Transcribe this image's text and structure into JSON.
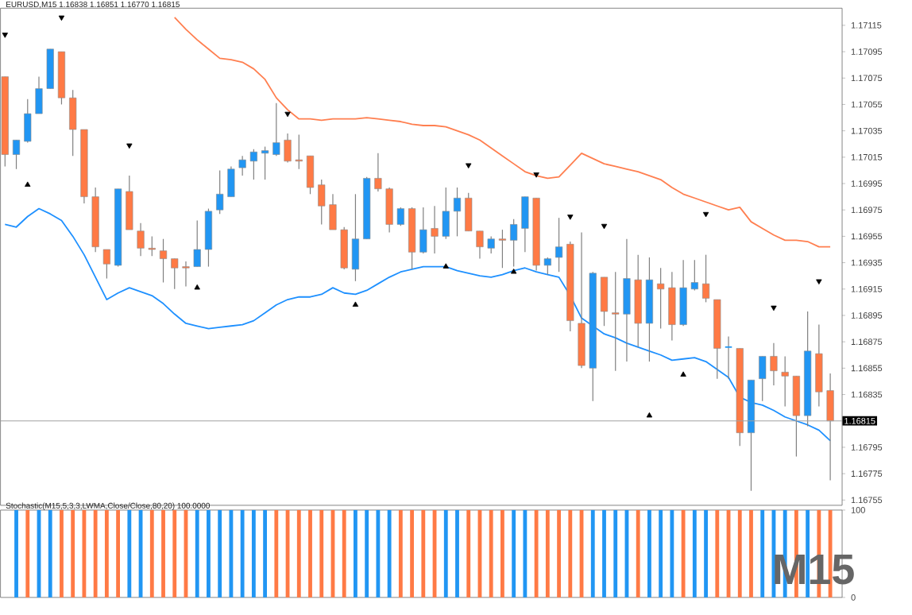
{
  "chart_data": [
    {
      "type": "candlestick",
      "title": "EURUSD,M15 1.16838 1.16851 1.16770 1.16815",
      "categories": [
        null,
        null,
        null,
        null,
        null,
        null,
        null,
        null,
        null,
        null,
        null,
        null,
        null,
        null,
        null,
        null,
        null,
        null,
        null,
        null,
        null,
        null,
        null,
        null,
        null,
        null,
        null,
        null,
        null,
        null,
        null,
        null,
        null,
        null,
        null,
        null,
        null,
        null,
        null,
        null,
        null,
        null,
        null,
        null,
        null,
        null,
        null,
        null,
        null,
        null,
        null,
        null,
        null,
        null,
        null,
        null,
        null,
        null,
        null,
        null,
        null,
        null,
        null,
        null,
        null,
        null,
        null,
        null,
        null,
        null,
        null,
        null,
        null,
        null
      ],
      "ohlc": [
        [
          1.17076,
          1.17076,
          1.17008,
          1.17017
        ],
        [
          1.17017,
          1.17028,
          1.17006,
          1.17028
        ],
        [
          1.17027,
          1.17059,
          1.17026,
          1.17048
        ],
        [
          1.17048,
          1.17076,
          1.17048,
          1.17067
        ],
        [
          1.17067,
          1.17097,
          1.17067,
          1.17097
        ],
        [
          1.17095,
          1.17095,
          1.17055,
          1.1706
        ],
        [
          1.1706,
          1.17066,
          1.17016,
          1.17036
        ],
        [
          1.17036,
          1.17036,
          1.1698,
          1.16985
        ],
        [
          1.16985,
          1.16992,
          1.16943,
          1.16947
        ],
        [
          1.16945,
          1.16945,
          1.16923,
          1.16934
        ],
        [
          1.16933,
          1.16991,
          1.16932,
          1.16991
        ],
        [
          1.16989,
          1.17001,
          1.1696,
          1.1696
        ],
        [
          1.16959,
          1.16965,
          1.1694,
          1.16946
        ],
        [
          1.16946,
          1.16955,
          1.1694,
          1.16945
        ],
        [
          1.16944,
          1.16953,
          1.1692,
          1.16938
        ],
        [
          1.16938,
          1.16938,
          1.16915,
          1.16931
        ],
        [
          1.16932,
          1.16936,
          1.16917,
          1.16931
        ],
        [
          1.16932,
          1.16967,
          1.16932,
          1.16945
        ],
        [
          1.16945,
          1.16976,
          1.16932,
          1.16974
        ],
        [
          1.16975,
          1.17005,
          1.16972,
          1.16987
        ],
        [
          1.16985,
          1.17008,
          1.16985,
          1.17006
        ],
        [
          1.17007,
          1.17016,
          1.17001,
          1.17013
        ],
        [
          1.17012,
          1.17021,
          1.16998,
          1.17019
        ],
        [
          1.17018,
          1.17023,
          1.16998,
          1.1702
        ],
        [
          1.17017,
          1.17056,
          1.17016,
          1.17026
        ],
        [
          1.17028,
          1.17033,
          1.17011,
          1.17012
        ],
        [
          1.17013,
          1.17032,
          1.17006,
          1.17012
        ],
        [
          1.17016,
          1.17016,
          1.16987,
          1.16992
        ],
        [
          1.16994,
          1.16998,
          1.16964,
          1.16978
        ],
        [
          1.16979,
          1.16987,
          1.1696,
          1.1696
        ],
        [
          1.1696,
          1.16962,
          1.1693,
          1.16931
        ],
        [
          1.1693,
          1.16987,
          1.16921,
          1.16953
        ],
        [
          1.16953,
          1.17,
          1.16953,
          1.16999
        ],
        [
          1.16999,
          1.17018,
          1.16989,
          1.16991
        ],
        [
          1.16991,
          1.16992,
          1.16958,
          1.16964
        ],
        [
          1.16964,
          1.16977,
          1.16963,
          1.16976
        ],
        [
          1.16976,
          1.16977,
          1.1693,
          1.16943
        ],
        [
          1.16943,
          1.16977,
          1.16942,
          1.1696
        ],
        [
          1.16961,
          1.16978,
          1.16942,
          1.16955
        ],
        [
          1.16955,
          1.16992,
          1.16953,
          1.16974
        ],
        [
          1.16974,
          1.16992,
          1.16955,
          1.16984
        ],
        [
          1.16984,
          1.16988,
          1.16959,
          1.16959
        ],
        [
          1.16959,
          1.16959,
          1.16938,
          1.16947
        ],
        [
          1.16946,
          1.16955,
          1.16942,
          1.16953
        ],
        [
          1.16953,
          1.1696,
          1.16931,
          1.16952
        ],
        [
          1.16952,
          1.16968,
          1.16932,
          1.16964
        ],
        [
          1.16961,
          1.16985,
          1.16943,
          1.16985
        ],
        [
          1.16984,
          1.16984,
          1.16929,
          1.16933
        ],
        [
          1.16933,
          1.16939,
          1.16926,
          1.16938
        ],
        [
          1.16939,
          1.16969,
          1.16928,
          1.16947
        ],
        [
          1.16949,
          1.16951,
          1.16883,
          1.16891
        ],
        [
          1.16889,
          1.16958,
          1.16855,
          1.16857
        ],
        [
          1.16855,
          1.16928,
          1.1683,
          1.16927
        ],
        [
          1.16924,
          1.16924,
          1.16887,
          1.16898
        ],
        [
          1.16897,
          1.16928,
          1.16853,
          1.16896
        ],
        [
          1.16896,
          1.16953,
          1.1686,
          1.16923
        ],
        [
          1.16922,
          1.16941,
          1.16871,
          1.16889
        ],
        [
          1.16889,
          1.16939,
          1.1686,
          1.16922
        ],
        [
          1.16919,
          1.16931,
          1.16885,
          1.16915
        ],
        [
          1.16916,
          1.16928,
          1.16876,
          1.16888
        ],
        [
          1.16888,
          1.16937,
          1.16887,
          1.16916
        ],
        [
          1.16915,
          1.16937,
          1.16914,
          1.1692
        ],
        [
          1.16919,
          1.16941,
          1.16905,
          1.16908
        ],
        [
          1.16907,
          1.16907,
          1.16847,
          1.1687
        ],
        [
          1.16871,
          1.16879,
          1.16847,
          1.16871
        ],
        [
          1.1687,
          1.1687,
          1.16796,
          1.16806
        ],
        [
          1.16806,
          1.16846,
          1.16762,
          1.16846
        ],
        [
          1.16847,
          1.16864,
          1.1683,
          1.16864
        ],
        [
          1.16864,
          1.16874,
          1.16842,
          1.16853
        ],
        [
          1.16852,
          1.16864,
          1.16826,
          1.16849
        ],
        [
          1.16849,
          1.16849,
          1.16788,
          1.16819
        ],
        [
          1.16819,
          1.16898,
          1.16811,
          1.16868
        ],
        [
          1.16866,
          1.16888,
          1.16826,
          1.16837
        ],
        [
          1.16838,
          1.16851,
          1.1677,
          1.16815
        ]
      ],
      "colors": [
        "#ff7a45",
        "#2196f3",
        "#2196f3",
        "#2196f3",
        "#2196f3",
        "#ff7a45",
        "#ff7a45",
        "#ff7a45",
        "#ff7a45",
        "#ff7a45",
        "#2196f3",
        "#ff7a45",
        "#ff7a45",
        "#ff7a45",
        "#ff7a45",
        "#ff7a45",
        "#ff7a45",
        "#2196f3",
        "#2196f3",
        "#2196f3",
        "#2196f3",
        "#2196f3",
        "#2196f3",
        "#2196f3",
        "#2196f3",
        "#ff7a45",
        "#ff7a45",
        "#ff7a45",
        "#ff7a45",
        "#ff7a45",
        "#ff7a45",
        "#2196f3",
        "#2196f3",
        "#ff7a45",
        "#ff7a45",
        "#2196f3",
        "#ff7a45",
        "#2196f3",
        "#ff7a45",
        "#2196f3",
        "#2196f3",
        "#ff7a45",
        "#ff7a45",
        "#2196f3",
        "#ff7a45",
        "#2196f3",
        "#2196f3",
        "#ff7a45",
        "#2196f3",
        "#2196f3",
        "#ff7a45",
        "#ff7a45",
        "#2196f3",
        "#ff7a45",
        "#ff7a45",
        "#2196f3",
        "#ff7a45",
        "#2196f3",
        "#ff7a45",
        "#ff7a45",
        "#2196f3",
        "#2196f3",
        "#ff7a45",
        "#ff7a45",
        "#2196f3",
        "#ff7a45",
        "#2196f3",
        "#2196f3",
        "#ff7a45",
        "#ff7a45",
        "#ff7a45",
        "#2196f3",
        "#ff7a45",
        "#ff7a45"
      ],
      "series": [
        {
          "type": "line",
          "color": "#ff7f50",
          "values": [
            null,
            null,
            null,
            null,
            null,
            null,
            null,
            null,
            null,
            null,
            null,
            null,
            null,
            null,
            null,
            1.17121,
            1.17112,
            1.17104,
            1.17097,
            1.1709,
            1.17089,
            1.17087,
            1.17082,
            1.17074,
            1.1706,
            1.17051,
            1.17044,
            1.17044,
            1.17043,
            1.17044,
            1.17044,
            1.17044,
            1.17045,
            1.17044,
            1.17043,
            1.17042,
            1.1704,
            1.17039,
            1.17039,
            1.17038,
            1.17035,
            1.17032,
            1.17028,
            1.17022,
            1.17016,
            1.1701,
            1.17004,
            1.17001,
            1.16999,
            1.17,
            1.17009,
            1.17018,
            1.17014,
            1.1701,
            1.17008,
            1.17006,
            1.17004,
            1.17001,
            1.16998,
            1.16992,
            1.16987,
            1.16984,
            1.16981,
            1.16978,
            1.16975,
            1.16977,
            1.16966,
            1.16961,
            1.16956,
            1.16952,
            1.16952,
            1.16951,
            1.16947,
            1.16947
          ]
        },
        {
          "type": "line",
          "color": "#1e90ff",
          "values": [
            1.16964,
            1.16962,
            1.1697,
            1.16976,
            1.16972,
            1.16967,
            1.16955,
            1.16941,
            1.16924,
            1.16907,
            1.16912,
            1.16916,
            1.16913,
            1.1691,
            1.16904,
            1.16896,
            1.16889,
            1.16887,
            1.16885,
            1.16886,
            1.16887,
            1.16888,
            1.16891,
            1.16897,
            1.16903,
            1.16907,
            1.16909,
            1.16909,
            1.16911,
            1.16916,
            1.16912,
            1.16911,
            1.16914,
            1.16919,
            1.16924,
            1.16928,
            1.1693,
            1.16932,
            1.16932,
            1.16932,
            1.16929,
            1.16927,
            1.16925,
            1.16924,
            1.16926,
            1.16929,
            1.16931,
            1.16928,
            1.16926,
            1.16924,
            1.1691,
            1.16893,
            1.16887,
            1.16881,
            1.16878,
            1.16874,
            1.16871,
            1.16868,
            1.16865,
            1.16861,
            1.16862,
            1.16863,
            1.1686,
            1.16854,
            1.16848,
            1.16833,
            1.16829,
            1.16827,
            1.16823,
            1.16818,
            1.16815,
            1.16812,
            1.16808,
            1.168
          ]
        },
        {
          "type": "scatter",
          "color": "#000000",
          "marker": "triangle",
          "values": [
            1.17108,
            null,
            null,
            null,
            null,
            1.17121,
            null,
            null,
            null,
            null,
            null,
            1.17024,
            null,
            null,
            null,
            null,
            null,
            null,
            null,
            null,
            null,
            null,
            null,
            null,
            null,
            1.17048,
            null,
            null,
            null,
            null,
            null,
            null,
            null,
            null,
            null,
            null,
            null,
            null,
            null,
            null,
            null,
            1.17009,
            null,
            null,
            null,
            null,
            null,
            1.17002,
            null,
            null,
            1.1697,
            null,
            null,
            1.16963,
            null,
            null,
            null,
            null,
            null,
            null,
            null,
            null,
            1.16972,
            null,
            null,
            null,
            null,
            null,
            1.16901,
            null,
            null,
            null,
            1.16921,
            null
          ]
        },
        {
          "type": "scatter",
          "color": "#000000",
          "marker": "triangle",
          "values": [
            null,
            null,
            1.16994,
            null,
            null,
            null,
            null,
            null,
            null,
            null,
            null,
            null,
            null,
            null,
            null,
            null,
            null,
            1.16916,
            null,
            null,
            null,
            null,
            null,
            null,
            null,
            null,
            null,
            null,
            null,
            null,
            null,
            1.16903,
            null,
            null,
            null,
            null,
            null,
            null,
            null,
            1.16932,
            null,
            null,
            null,
            null,
            null,
            1.16928,
            null,
            null,
            null,
            null,
            null,
            null,
            null,
            null,
            null,
            null,
            null,
            1.16819,
            null,
            null,
            1.1685,
            null,
            null,
            null,
            null,
            null,
            null,
            null,
            null,
            null,
            null,
            null,
            null,
            null
          ]
        }
      ],
      "ylim": [
        1.16751,
        1.17128
      ],
      "yticks": [
        1.16755,
        1.16775,
        1.16795,
        {
          "value": 1.16815,
          "label": null
        },
        1.16835,
        1.16855,
        1.16875,
        1.16895,
        1.16915,
        1.16935,
        1.16955,
        1.16975,
        1.16995,
        1.17015,
        1.17035,
        1.17055,
        1.17075,
        1.17095,
        1.17115
      ],
      "ref_lines": [
        {
          "axis": "y",
          "value": 1.16815,
          "label": "1.16815",
          "color": "#a0a0a0"
        }
      ],
      "tick_labels": "y"
    },
    {
      "type": "bar",
      "title": "Stochastic(M15,5,3,3,LWMA,Close/Close,80,20) 100.0000",
      "categories": [
        null,
        null,
        null,
        null,
        null,
        null,
        null,
        null,
        null,
        null,
        null,
        null,
        null,
        null,
        null,
        null,
        null,
        null,
        null,
        null,
        null,
        null,
        null,
        null,
        null,
        null,
        null,
        null,
        null,
        null,
        null,
        null,
        null,
        null,
        null,
        null,
        null,
        null,
        null,
        null,
        null,
        null,
        null,
        null,
        null,
        null,
        null,
        null,
        null,
        null,
        null,
        null,
        null,
        null,
        null,
        null,
        null,
        null,
        null,
        null,
        null,
        null,
        null,
        null,
        null,
        null,
        null,
        null,
        null,
        null,
        null,
        null,
        null,
        null
      ],
      "values": [
        null,
        100,
        100,
        100,
        100,
        100,
        100,
        100,
        100,
        100,
        100,
        100,
        100,
        100,
        100,
        100,
        100,
        100,
        100,
        100,
        100,
        100,
        100,
        100,
        100,
        100,
        100,
        100,
        100,
        100,
        100,
        100,
        100,
        100,
        100,
        100,
        100,
        100,
        100,
        100,
        100,
        100,
        100,
        100,
        100,
        100,
        100,
        100,
        100,
        100,
        100,
        100,
        100,
        100,
        100,
        100,
        100,
        100,
        100,
        100,
        100,
        100,
        100,
        100,
        100,
        100,
        100,
        100,
        100,
        100,
        100,
        100,
        100,
        100
      ],
      "colors": [
        null,
        "#2196f3",
        "#ff7a45",
        "#2196f3",
        "#2196f3",
        "#ff7a45",
        "#ff7a45",
        "#ff7a45",
        "#ff7a45",
        "#ff7a45",
        "#ff7a45",
        "#2196f3",
        "#2196f3",
        "#ff7a45",
        "#ff7a45",
        "#ff7a45",
        "#ff7a45",
        "#2196f3",
        "#2196f3",
        "#2196f3",
        "#2196f3",
        "#2196f3",
        "#2196f3",
        "#2196f3",
        "#ff7a45",
        "#ff7a45",
        "#ff7a45",
        "#ff7a45",
        "#ff7a45",
        "#ff7a45",
        "#ff7a45",
        "#2196f3",
        "#2196f3",
        "#2196f3",
        "#2196f3",
        "#ff7a45",
        "#ff7a45",
        "#ff7a45",
        "#ff7a45",
        "#2196f3",
        "#2196f3",
        "#ff7a45",
        "#ff7a45",
        "#ff7a45",
        "#ff7a45",
        "#2196f3",
        "#2196f3",
        "#ff7a45",
        "#ff7a45",
        "#ff7a45",
        "#ff7a45",
        "#ff7a45",
        "#2196f3",
        "#2196f3",
        "#2196f3",
        "#2196f3",
        "#ff7a45",
        "#2196f3",
        "#2196f3",
        "#2196f3",
        "#ff7a45",
        "#2196f3",
        "#2196f3",
        "#ff7a45",
        "#ff7a45",
        "#ff7a45",
        "#ff7a45",
        "#2196f3",
        "#2196f3",
        "#2196f3",
        "#ff7a45",
        "#2196f3",
        "#ff7a45",
        "#ff7a45"
      ],
      "ylim": [
        0,
        100
      ],
      "yticks": [
        0,
        100
      ],
      "annotations": [
        "M15"
      ],
      "tick_labels": "y"
    }
  ]
}
